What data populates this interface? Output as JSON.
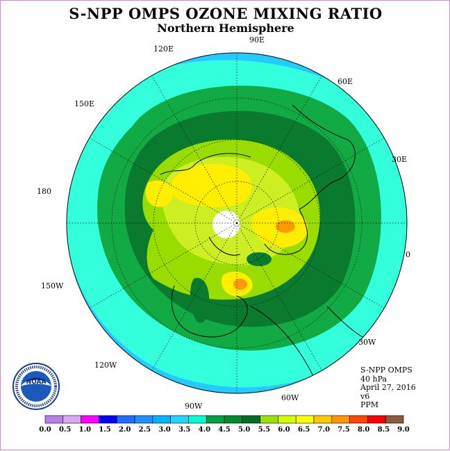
{
  "title": "S-NPP OMPS OZONE MIXING RATIO",
  "subtitle": "Northern Hemisphere",
  "longitude_labels": [
    {
      "text": "90E"
    },
    {
      "text": "60E"
    },
    {
      "text": "30E"
    },
    {
      "text": "0"
    },
    {
      "text": "30W"
    },
    {
      "text": "60W"
    },
    {
      "text": "90W"
    },
    {
      "text": "120W"
    },
    {
      "text": "150W"
    },
    {
      "text": "180"
    },
    {
      "text": "150E"
    },
    {
      "text": "120E"
    }
  ],
  "info": {
    "instrument": "S-NPP OMPS",
    "level": "40 hPa",
    "date": "April 27, 2016",
    "version": "v6",
    "units": "PPM"
  },
  "logo": {
    "text": "NOAA",
    "ring_text": "NATIONAL OCEANIC AND ATMOSPHERIC ADMINISTRATION · U.S. DEPARTMENT OF COMMERCE"
  },
  "colorbar": {
    "ticks": [
      "0.0",
      "0.5",
      "1.0",
      "1.5",
      "2.0",
      "2.5",
      "3.0",
      "3.5",
      "4.0",
      "4.5",
      "5.0",
      "5.5",
      "6.0",
      "6.5",
      "7.0",
      "7.5",
      "8.0",
      "8.5",
      "9.0"
    ],
    "colors": [
      "#b57ff0",
      "#d8a8f0",
      "#ff00ff",
      "#0000ff",
      "#1f6fff",
      "#1e90ff",
      "#00b4ff",
      "#22d2ff",
      "#00ffd2",
      "#00a040",
      "#008a30",
      "#006e28",
      "#9ce000",
      "#d2ff00",
      "#ffff00",
      "#ffc800",
      "#ff9600",
      "#ff4600",
      "#ff0000",
      "#8b5a3a"
    ]
  },
  "colors": {
    "ocean_fill": "#22ccff",
    "band_cyan": "#33ffdd",
    "band_green": "#11aa44",
    "band_darkgreen": "#0a7a2e",
    "band_lime": "#99dd00",
    "band_yellowgreen": "#ccee22",
    "band_yellow": "#ffee00",
    "band_orange": "#ff9900",
    "polar_hole": "#ffffff"
  }
}
